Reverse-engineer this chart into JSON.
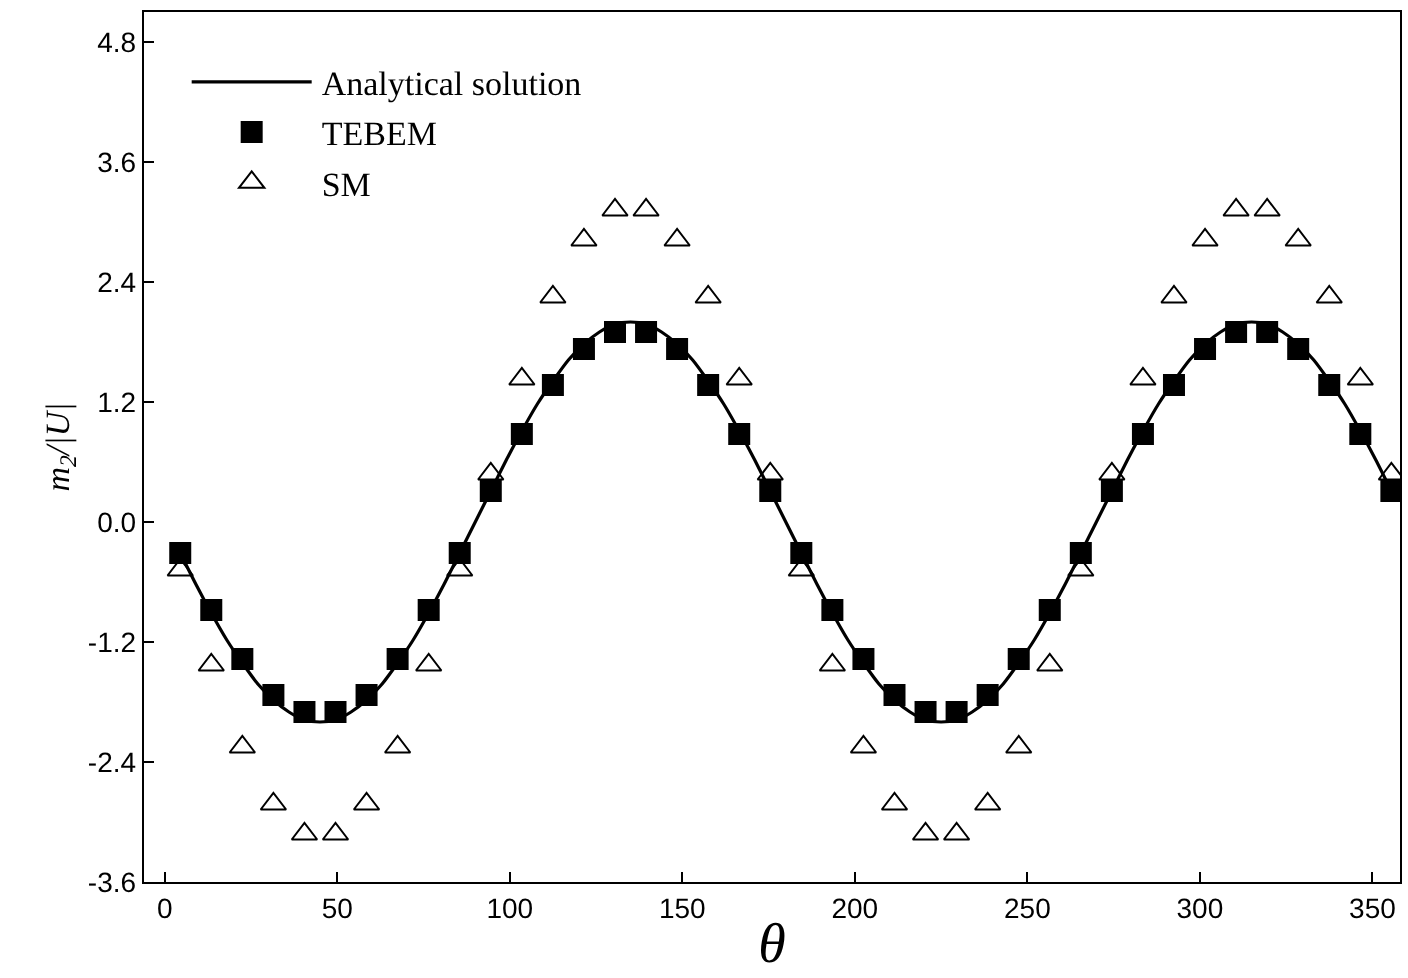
{
  "chart_data": {
    "type": "line",
    "xlabel": "θ",
    "ylabel": "m$_{2}$/|U|",
    "xlim": [
      -6,
      358
    ],
    "xticks": [
      0,
      50,
      100,
      150,
      200,
      250,
      300,
      350
    ],
    "ylim": [
      -3.6,
      5.1
    ],
    "yticks": [
      -3.6,
      -2.4,
      -1.2,
      {
        "value": 0,
        "label": "0.0"
      },
      1.2,
      2.4,
      3.6,
      4.8
    ],
    "legend": "top left",
    "series": [
      {
        "name": "Analytical solution",
        "color": "#000000",
        "marker": "none",
        "line_style": "solid",
        "x": [
          4.5,
          9,
          13.5,
          18,
          22.5,
          27,
          31.5,
          36,
          40.5,
          45,
          49.5,
          54,
          58.5,
          63,
          67.5,
          72,
          76.5,
          81,
          85.5,
          90,
          94.5,
          99,
          103.5,
          108,
          112.5,
          117,
          121.5,
          126,
          130.5,
          135,
          139.5,
          144,
          148.5,
          153,
          157.5,
          162,
          166.5,
          171,
          175.5,
          180,
          184.5,
          189,
          193.5,
          198,
          202.5,
          207,
          211.5,
          216,
          220.5,
          225,
          229.5,
          234,
          238.5,
          243,
          247.5,
          252,
          256.5,
          261,
          265.5,
          270,
          274.5,
          279,
          283.5,
          288,
          292.5,
          297,
          301.5,
          306,
          310.5,
          315,
          319.5,
          324,
          328.5,
          333,
          337.5,
          342,
          346.5,
          351,
          355.5
        ],
        "values": [
          -0.31,
          -0.62,
          -0.91,
          -1.18,
          -1.41,
          -1.62,
          -1.78,
          -1.9,
          -1.98,
          -2.0,
          -1.98,
          -1.9,
          -1.78,
          -1.62,
          -1.41,
          -1.18,
          -0.91,
          -0.62,
          -0.31,
          0,
          0.31,
          0.62,
          0.91,
          1.18,
          1.41,
          1.62,
          1.78,
          1.9,
          1.98,
          2.0,
          1.98,
          1.9,
          1.78,
          1.62,
          1.41,
          1.18,
          0.91,
          0.62,
          0.31,
          0,
          -0.31,
          -0.62,
          -0.91,
          -1.18,
          -1.41,
          -1.62,
          -1.78,
          -1.9,
          -1.98,
          -2.0,
          -1.98,
          -1.9,
          -1.78,
          -1.62,
          -1.41,
          -1.18,
          -0.91,
          -0.62,
          -0.31,
          0,
          0.31,
          0.62,
          0.91,
          1.18,
          1.41,
          1.62,
          1.78,
          1.9,
          1.98,
          2.0,
          1.98,
          1.9,
          1.78,
          1.62,
          1.41,
          1.18,
          0.91,
          0.62,
          0.31
        ]
      },
      {
        "name": "TEBEM",
        "type": "scatter",
        "color": "#000000",
        "marker": "square",
        "x": [
          4.5,
          13.5,
          22.5,
          31.5,
          40.5,
          49.5,
          58.5,
          67.5,
          76.5,
          85.5,
          94.5,
          103.5,
          112.5,
          121.5,
          130.5,
          139.5,
          148.5,
          157.5,
          166.5,
          175.5,
          184.5,
          193.5,
          202.5,
          211.5,
          220.5,
          229.5,
          238.5,
          247.5,
          256.5,
          265.5,
          274.5,
          283.5,
          292.5,
          301.5,
          310.5,
          319.5,
          328.5,
          337.5,
          346.5,
          355.5
        ],
        "values": [
          -0.31,
          -0.88,
          -1.37,
          -1.73,
          -1.9,
          -1.9,
          -1.73,
          -1.37,
          -0.88,
          -0.31,
          0.31,
          0.88,
          1.37,
          1.73,
          1.9,
          1.9,
          1.73,
          1.37,
          0.88,
          0.31,
          -0.31,
          -0.88,
          -1.37,
          -1.73,
          -1.9,
          -1.9,
          -1.73,
          -1.37,
          -0.88,
          -0.31,
          0.31,
          0.88,
          1.37,
          1.73,
          1.9,
          1.9,
          1.73,
          1.37,
          0.88,
          0.31
        ]
      },
      {
        "name": "SM",
        "type": "scatter",
        "color": "#000000",
        "marker": "triangle",
        "x": [
          4.5,
          13.5,
          22.5,
          31.5,
          40.5,
          49.5,
          58.5,
          67.5,
          76.5,
          85.5,
          94.5,
          103.5,
          112.5,
          121.5,
          130.5,
          139.5,
          148.5,
          157.5,
          166.5,
          175.5,
          184.5,
          193.5,
          202.5,
          211.5,
          220.5,
          229.5,
          238.5,
          247.5,
          256.5,
          265.5,
          274.5,
          283.5,
          292.5,
          301.5,
          310.5,
          319.5,
          328.5,
          337.5,
          346.5,
          355.5
        ],
        "values": [
          -0.48,
          -1.43,
          -2.25,
          -2.82,
          -3.12,
          -3.12,
          -2.82,
          -2.25,
          -1.43,
          -0.48,
          0.48,
          1.43,
          2.25,
          2.82,
          3.12,
          3.12,
          2.82,
          2.25,
          1.43,
          0.48,
          -0.48,
          -1.43,
          -2.25,
          -2.82,
          -3.12,
          -3.12,
          -2.82,
          -2.25,
          -1.43,
          -0.48,
          0.48,
          1.43,
          2.25,
          2.82,
          3.12,
          3.12,
          2.82,
          2.25,
          1.43,
          0.48
        ]
      }
    ]
  }
}
